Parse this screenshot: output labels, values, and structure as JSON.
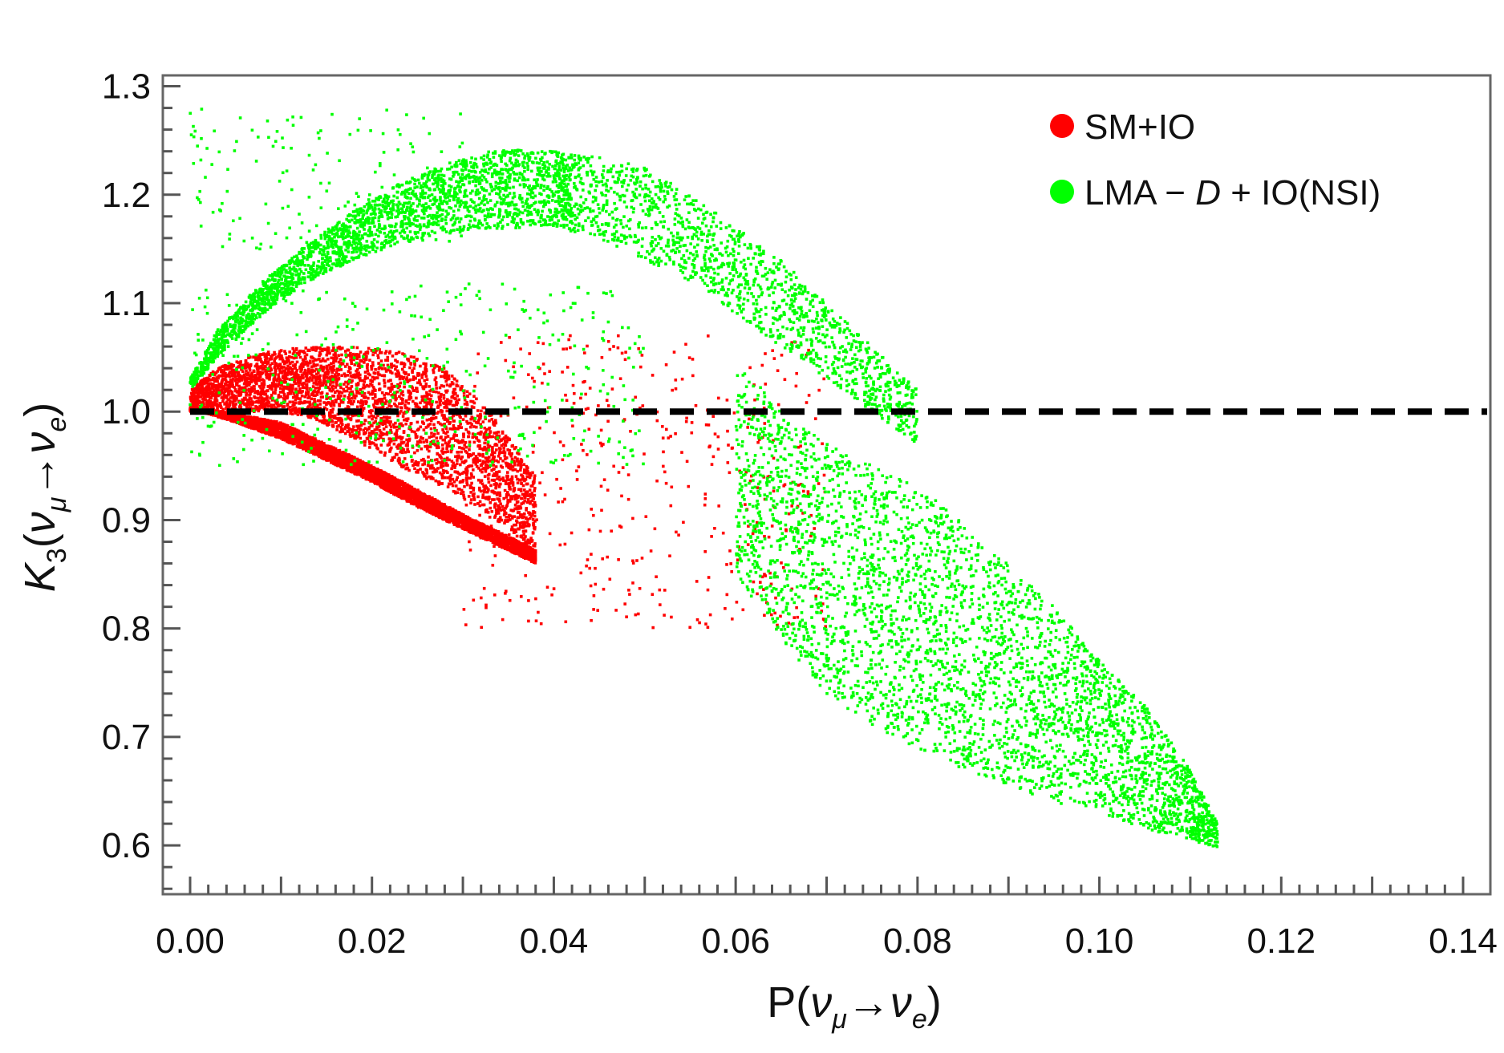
{
  "chart_data": {
    "type": "scatter",
    "title": "",
    "xlabel": {
      "prefix": "P(",
      "nu1": "ν",
      "sub1": "μ",
      "arrow": "→",
      "nu2": "ν",
      "sub2": "e",
      "suffix": ")"
    },
    "ylabel": {
      "k": "K",
      "ksub": "3",
      "open": "(",
      "nu1": "ν",
      "sub1": "μ",
      "arrow": "→",
      "nu2": "ν",
      "sub2": "e",
      "close": ")"
    },
    "xlim": [
      -0.003,
      0.143
    ],
    "ylim": [
      0.555,
      1.31
    ],
    "x_ticks": [
      "0.00",
      "0.02",
      "0.04",
      "0.06",
      "0.08",
      "0.10",
      "0.12",
      "0.14"
    ],
    "x_tick_values": [
      0.0,
      0.02,
      0.04,
      0.06,
      0.08,
      0.1,
      0.12,
      0.14
    ],
    "y_ticks": [
      "0.6",
      "0.7",
      "0.8",
      "0.9",
      "1.0",
      "1.1",
      "1.2",
      "1.3"
    ],
    "y_tick_values": [
      0.6,
      0.7,
      0.8,
      0.9,
      1.0,
      1.1,
      1.2,
      1.3
    ],
    "reference_line": {
      "y": 1.0,
      "style": "dashed",
      "color": "#000000"
    },
    "legend": {
      "placement": "top-right",
      "entries": [
        {
          "label": "SM+IO",
          "color": "#ff0000"
        },
        {
          "label_main": "LMA",
          "label_op": " − ",
          "label_d": "D",
          "label_rest": " + IO(NSI)",
          "color": "#00ff00"
        }
      ]
    },
    "series": [
      {
        "name": "SM+IO",
        "color": "#ff0000",
        "approx_points": 9000,
        "regions": [
          {
            "kind": "band",
            "x": [
              0.0,
              0.002,
              0.005,
              0.01,
              0.015,
              0.02,
              0.025,
              0.03,
              0.035,
              0.038
            ],
            "y_low": [
              1.0,
              0.998,
              0.99,
              0.975,
              0.955,
              0.935,
              0.912,
              0.892,
              0.872,
              0.86
            ],
            "y_high": [
              1.005,
              1.002,
              0.998,
              0.99,
              0.97,
              0.95,
              0.928,
              0.905,
              0.885,
              0.872
            ],
            "weight": 0.55
          },
          {
            "kind": "band",
            "x": [
              0.0,
              0.003,
              0.008,
              0.013,
              0.018,
              0.023,
              0.028,
              0.033,
              0.038
            ],
            "y_low": [
              1.0,
              1.0,
              1.0,
              0.995,
              0.975,
              0.95,
              0.93,
              0.905,
              0.87
            ],
            "y_high": [
              1.02,
              1.04,
              1.055,
              1.06,
              1.06,
              1.055,
              1.04,
              1.0,
              0.94
            ],
            "weight": 0.4
          },
          {
            "kind": "scatter",
            "x_range": [
              0.03,
              0.07
            ],
            "y_range": [
              0.8,
              1.07
            ],
            "weight": 0.05
          }
        ]
      },
      {
        "name": "LMA − D + IO(NSI)",
        "color": "#00ff00",
        "approx_points": 8000,
        "regions": [
          {
            "kind": "band",
            "x": [
              0.0,
              0.003,
              0.008,
              0.013,
              0.018,
              0.023,
              0.028,
              0.033,
              0.038,
              0.042
            ],
            "y_low": [
              1.02,
              1.05,
              1.09,
              1.12,
              1.14,
              1.155,
              1.163,
              1.168,
              1.17,
              1.172
            ],
            "y_high": [
              1.03,
              1.075,
              1.12,
              1.155,
              1.185,
              1.21,
              1.228,
              1.24,
              1.242,
              1.238
            ],
            "weight": 0.3
          },
          {
            "kind": "band",
            "x": [
              0.04,
              0.045,
              0.05,
              0.055,
              0.06,
              0.065,
              0.07,
              0.075,
              0.08
            ],
            "y_low": [
              1.17,
              1.16,
              1.14,
              1.12,
              1.09,
              1.06,
              1.03,
              1.0,
              0.97
            ],
            "y_high": [
              1.24,
              1.235,
              1.225,
              1.2,
              1.17,
              1.14,
              1.1,
              1.06,
              1.02
            ],
            "weight": 0.18
          },
          {
            "kind": "band",
            "x": [
              0.06,
              0.065,
              0.07,
              0.075,
              0.08,
              0.085,
              0.09,
              0.095,
              0.1,
              0.105,
              0.11,
              0.113
            ],
            "y_low": [
              0.85,
              0.79,
              0.74,
              0.71,
              0.69,
              0.67,
              0.655,
              0.64,
              0.63,
              0.615,
              0.605,
              0.598
            ],
            "y_high": [
              1.05,
              1.0,
              0.97,
              0.95,
              0.93,
              0.9,
              0.86,
              0.82,
              0.77,
              0.73,
              0.67,
              0.62
            ],
            "weight": 0.45
          },
          {
            "kind": "scatter",
            "x_range": [
              0.0,
              0.05
            ],
            "y_range": [
              0.95,
              1.12
            ],
            "weight": 0.05
          },
          {
            "kind": "scatter",
            "x_range": [
              0.0,
              0.03
            ],
            "y_range": [
              1.15,
              1.28
            ],
            "weight": 0.02
          }
        ]
      }
    ]
  }
}
